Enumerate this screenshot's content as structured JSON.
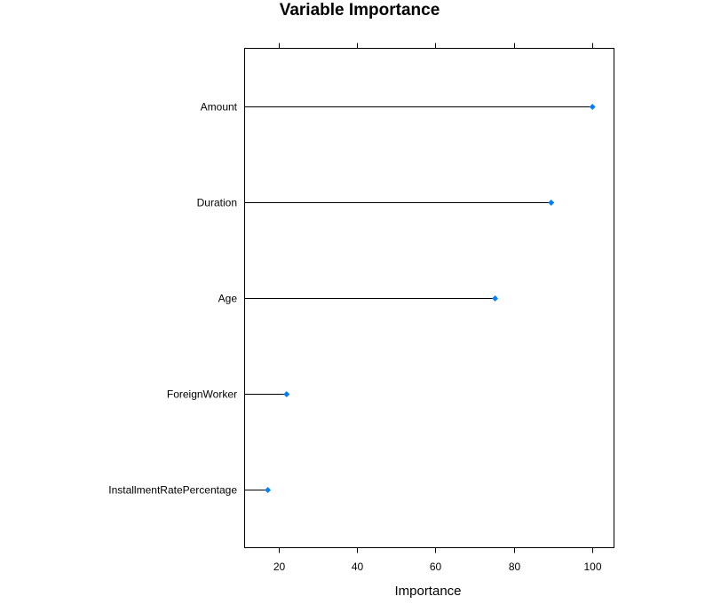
{
  "chart_data": {
    "type": "dot",
    "title": "Variable Importance",
    "xlabel": "Importance",
    "ylabel": "",
    "xlim": [
      11.4,
      105.5
    ],
    "x_ticks": [
      20,
      40,
      60,
      80,
      100
    ],
    "categories": [
      "Amount",
      "Duration",
      "Age",
      "ForeignWorker",
      "InstallmentRatePercentage"
    ],
    "values": [
      100,
      89.5,
      75.2,
      22.1,
      17.3
    ],
    "grid": false,
    "point_color": "#0080ff",
    "line_color": "#000000"
  }
}
